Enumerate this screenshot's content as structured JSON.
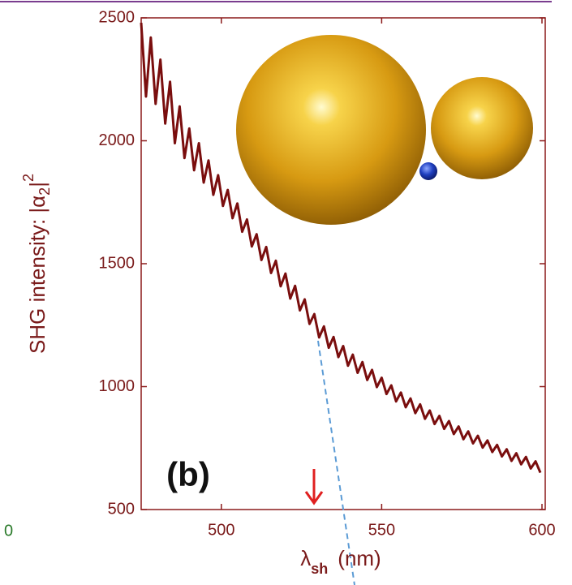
{
  "chart_data": {
    "type": "line",
    "y_label": "SHG intensity:  |α",
    "y_label_sub": "2",
    "y_label_tail": "|",
    "y_label_sup": "2",
    "x_label": "λ",
    "x_label_sub": "sh",
    "x_label_tail": "(nm)",
    "annotation": "(b)",
    "edge_label": "0",
    "xlim": [
      475,
      600
    ],
    "xticks": [
      500,
      550,
      600
    ],
    "ylim": [
      500,
      2500
    ],
    "yticks": [
      500,
      1000,
      1500,
      2000,
      2500
    ],
    "color": "#7a0e0e",
    "x": [
      475,
      476.5,
      478,
      479.5,
      481,
      482.5,
      484,
      485.5,
      487,
      488.5,
      490,
      491.5,
      493,
      494.5,
      496,
      497.5,
      499,
      500.5,
      502,
      503.5,
      505,
      506.5,
      508,
      509.5,
      511,
      512.5,
      514,
      515.5,
      517,
      518.5,
      520,
      521.5,
      523,
      524.5,
      526,
      527.5,
      529,
      530.5,
      532,
      533.5,
      535,
      536.5,
      538,
      539.5,
      541,
      542.5,
      544,
      545.5,
      547,
      548.5,
      550,
      551.5,
      553,
      554.5,
      556,
      557.5,
      559,
      560.5,
      562,
      563.5,
      565,
      566.5,
      568,
      569.5,
      571,
      572.5,
      574,
      575.5,
      577,
      578.5,
      580,
      581.5,
      583,
      584.5,
      586,
      587.5,
      589,
      590.5,
      592,
      593.5,
      595,
      596.5,
      598,
      599.5
    ],
    "values": [
      2480,
      2180,
      2420,
      2150,
      2330,
      2070,
      2240,
      1990,
      2140,
      1930,
      2050,
      1880,
      1990,
      1830,
      1920,
      1780,
      1860,
      1735,
      1800,
      1685,
      1745,
      1630,
      1680,
      1570,
      1620,
      1515,
      1568,
      1462,
      1512,
      1408,
      1460,
      1358,
      1410,
      1310,
      1355,
      1255,
      1295,
      1200,
      1245,
      1158,
      1202,
      1120,
      1165,
      1085,
      1130,
      1056,
      1100,
      1027,
      1068,
      998,
      1036,
      970,
      1005,
      940,
      976,
      916,
      952,
      892,
      928,
      869,
      903,
      848,
      881,
      828,
      860,
      807,
      838,
      786,
      818,
      769,
      800,
      752,
      781,
      734,
      763,
      716,
      745,
      698,
      729,
      684,
      714,
      667,
      696,
      650
    ]
  }
}
